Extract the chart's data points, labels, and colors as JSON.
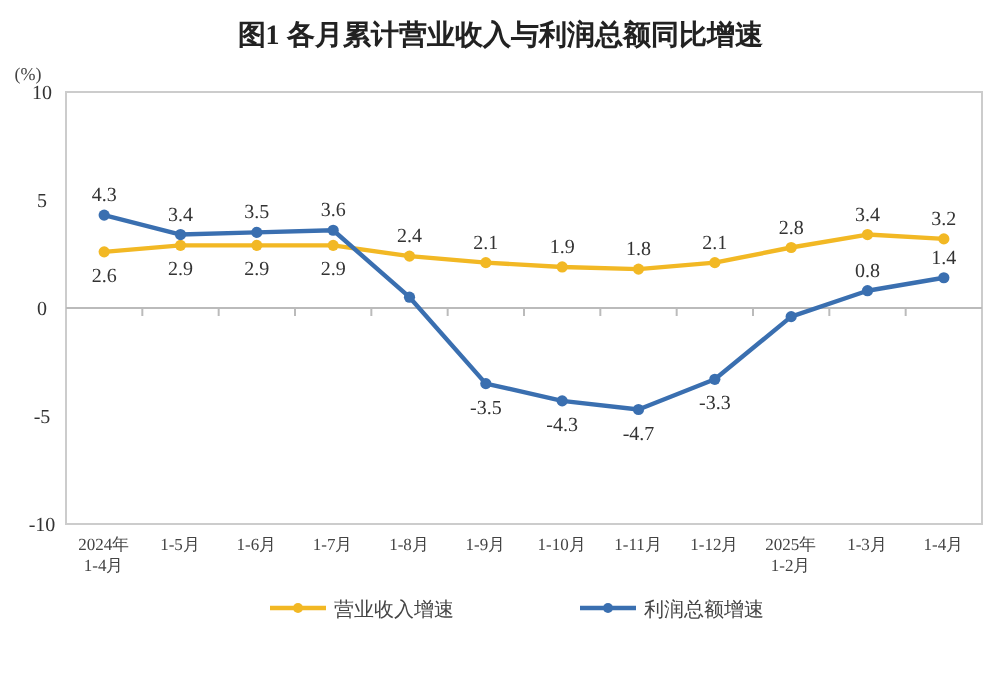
{
  "chart_data": {
    "type": "line",
    "title": "图1  各月累计营业收入与利润总额同比增速",
    "ylabel": "(%)",
    "categories": [
      "2024年\n1-4月",
      "1-5月",
      "1-6月",
      "1-7月",
      "1-8月",
      "1-9月",
      "1-10月",
      "1-11月",
      "1-12月",
      "2025年\n1-2月",
      "1-3月",
      "1-4月"
    ],
    "series": [
      {
        "name": "营业收入增速",
        "color": "#f2b824",
        "values": [
          2.6,
          2.9,
          2.9,
          2.9,
          2.4,
          2.1,
          1.9,
          1.8,
          2.1,
          2.8,
          3.4,
          3.2
        ],
        "value_labels": [
          "2.6",
          "2.9",
          "2.9",
          "2.9",
          "2.4",
          "2.1",
          "1.9",
          "1.8",
          "2.1",
          "2.8",
          "3.4",
          "3.2"
        ]
      },
      {
        "name": "利润总额增速",
        "color": "#3a6fb0",
        "values": [
          4.3,
          3.4,
          3.5,
          3.6,
          0.5,
          -3.5,
          -4.3,
          -4.7,
          -3.3,
          -0.4,
          0.8,
          1.4
        ],
        "value_labels": [
          "4.3",
          "3.4",
          "3.5",
          "3.6",
          null,
          "-3.5",
          "-4.3",
          "-4.7",
          "-3.3",
          null,
          "0.8",
          "1.4"
        ]
      }
    ],
    "ylim": [
      -10,
      10
    ],
    "yticks": [
      -10,
      -5,
      0,
      5,
      10
    ],
    "marker": "circle",
    "legend": "bottom"
  }
}
